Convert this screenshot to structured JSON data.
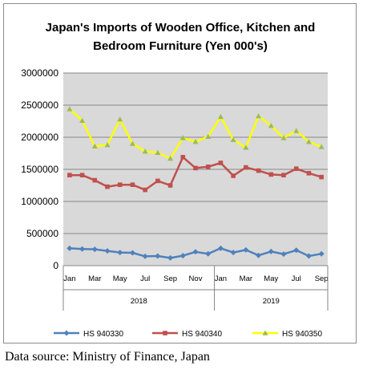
{
  "chart_data": {
    "type": "line",
    "title_lines": [
      "Japan's Imports of  Wooden  Office, Kitchen and",
      "Bedroom Furniture (Yen 000's)"
    ],
    "xlabel": "",
    "ylabel": "",
    "ylim": [
      0,
      3000000
    ],
    "yticks": [
      "0",
      "500000",
      "1000000",
      "1500000",
      "2000000",
      "2500000",
      "3000000"
    ],
    "grid": "horizontal",
    "legend_position": "bottom",
    "categories": [
      "Jan",
      "Feb",
      "Mar",
      "Apr",
      "May",
      "Jun",
      "Jul",
      "Aug",
      "Sep",
      "Oct",
      "Nov",
      "Dec",
      "Jan",
      "Feb",
      "Mar",
      "Apr",
      "May",
      "Jun",
      "Jul",
      "Aug",
      "Sep"
    ],
    "tick_labels": [
      "Jan",
      "Mar",
      "May",
      "Jul",
      "Sep",
      "Nov",
      "Jan",
      "Mar",
      "May",
      "Jul",
      "Sep"
    ],
    "years": [
      {
        "label": "2018",
        "start": 0,
        "count": 12
      },
      {
        "label": "2019",
        "start": 12,
        "count": 9
      }
    ],
    "series": [
      {
        "name": "HS 940330",
        "color": "#4f81bd",
        "marker": "diamond",
        "values": [
          270000,
          260000,
          255000,
          230000,
          205000,
          200000,
          145000,
          150000,
          120000,
          155000,
          215000,
          185000,
          270000,
          205000,
          245000,
          160000,
          220000,
          180000,
          240000,
          150000,
          185000
        ]
      },
      {
        "name": "HS 940340",
        "color": "#c0504d",
        "marker": "square",
        "values": [
          1410000,
          1410000,
          1330000,
          1230000,
          1260000,
          1260000,
          1180000,
          1320000,
          1250000,
          1690000,
          1520000,
          1540000,
          1600000,
          1400000,
          1530000,
          1480000,
          1420000,
          1410000,
          1510000,
          1440000,
          1380000
        ]
      },
      {
        "name": "HS 940350",
        "color": "#ffff00",
        "marker": "triangle",
        "marker_color": "#9bbb59",
        "values": [
          2440000,
          2260000,
          1860000,
          1880000,
          2280000,
          1900000,
          1780000,
          1760000,
          1670000,
          1990000,
          1930000,
          2010000,
          2320000,
          1960000,
          1840000,
          2330000,
          2180000,
          1990000,
          2100000,
          1930000,
          1850000
        ]
      }
    ]
  },
  "footer": {
    "source": "Data source: Ministry of Finance, Japan"
  }
}
